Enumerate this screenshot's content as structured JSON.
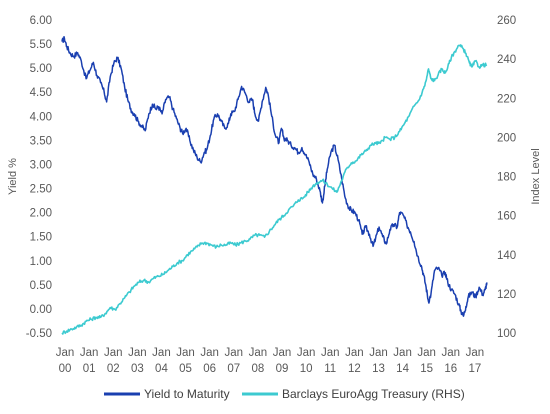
{
  "chart_data": {
    "type": "line",
    "ylabel": "Yield %",
    "y2label": "Index Level",
    "ylim": [
      -0.5,
      6.0
    ],
    "y2lim": [
      100,
      260
    ],
    "xlim": [
      2000.0,
      2017.75
    ],
    "grid": false,
    "legend_placement": "bottom",
    "y_ticks": [
      "6.00",
      "5.50",
      "5.00",
      "4.50",
      "4.00",
      "3.50",
      "3.00",
      "2.50",
      "2.00",
      "1.50",
      "1.00",
      "0.50",
      "0.00",
      "-0.50"
    ],
    "y2_ticks": [
      "260",
      "240",
      "220",
      "200",
      "180",
      "160",
      "140",
      "120",
      "100"
    ],
    "x_ticks": [
      {
        "x": 2000,
        "month": "Jan",
        "year": "00"
      },
      {
        "x": 2001,
        "month": "Jan",
        "year": "01"
      },
      {
        "x": 2002,
        "month": "Jan",
        "year": "02"
      },
      {
        "x": 2003,
        "month": "Jan",
        "year": "03"
      },
      {
        "x": 2004,
        "month": "Jan",
        "year": "04"
      },
      {
        "x": 2005,
        "month": "Jan",
        "year": "05"
      },
      {
        "x": 2006,
        "month": "Jan",
        "year": "06"
      },
      {
        "x": 2007,
        "month": "Jan",
        "year": "07"
      },
      {
        "x": 2008,
        "month": "Jan",
        "year": "08"
      },
      {
        "x": 2009,
        "month": "Jan",
        "year": "09"
      },
      {
        "x": 2010,
        "month": "Jan",
        "year": "10"
      },
      {
        "x": 2011,
        "month": "Jan",
        "year": "11"
      },
      {
        "x": 2012,
        "month": "Jan",
        "year": "12"
      },
      {
        "x": 2013,
        "month": "Jan",
        "year": "13"
      },
      {
        "x": 2014,
        "month": "Jan",
        "year": "14"
      },
      {
        "x": 2015,
        "month": "Jan",
        "year": "15"
      },
      {
        "x": 2016,
        "month": "Jan",
        "year": "16"
      },
      {
        "x": 2017,
        "month": "Jan",
        "year": "17"
      }
    ],
    "series": [
      {
        "name": "Yield to Maturity",
        "axis": "left",
        "color": "#1a3fb0",
        "points": [
          [
            2000.0,
            5.55
          ],
          [
            2000.1,
            5.62
          ],
          [
            2000.2,
            5.45
          ],
          [
            2000.35,
            5.3
          ],
          [
            2000.5,
            5.25
          ],
          [
            2000.65,
            5.32
          ],
          [
            2000.8,
            5.15
          ],
          [
            2001.0,
            4.78
          ],
          [
            2001.15,
            4.95
          ],
          [
            2001.3,
            5.12
          ],
          [
            2001.45,
            4.85
          ],
          [
            2001.6,
            4.7
          ],
          [
            2001.75,
            4.5
          ],
          [
            2001.85,
            4.3
          ],
          [
            2002.0,
            4.82
          ],
          [
            2002.15,
            5.1
          ],
          [
            2002.3,
            5.22
          ],
          [
            2002.45,
            5.0
          ],
          [
            2002.6,
            4.6
          ],
          [
            2002.75,
            4.3
          ],
          [
            2002.9,
            4.1
          ],
          [
            2003.0,
            4.05
          ],
          [
            2003.15,
            3.9
          ],
          [
            2003.3,
            3.8
          ],
          [
            2003.45,
            3.7
          ],
          [
            2003.6,
            4.05
          ],
          [
            2003.75,
            4.25
          ],
          [
            2003.9,
            4.15
          ],
          [
            2004.0,
            4.2
          ],
          [
            2004.15,
            4.05
          ],
          [
            2004.3,
            4.35
          ],
          [
            2004.45,
            4.4
          ],
          [
            2004.6,
            4.15
          ],
          [
            2004.75,
            3.95
          ],
          [
            2004.9,
            3.75
          ],
          [
            2005.0,
            3.65
          ],
          [
            2005.15,
            3.75
          ],
          [
            2005.3,
            3.5
          ],
          [
            2005.45,
            3.3
          ],
          [
            2005.6,
            3.15
          ],
          [
            2005.75,
            3.05
          ],
          [
            2005.9,
            3.25
          ],
          [
            2006.0,
            3.3
          ],
          [
            2006.15,
            3.6
          ],
          [
            2006.3,
            3.95
          ],
          [
            2006.45,
            4.05
          ],
          [
            2006.6,
            3.9
          ],
          [
            2006.75,
            3.75
          ],
          [
            2006.9,
            3.85
          ],
          [
            2007.0,
            4.05
          ],
          [
            2007.15,
            4.1
          ],
          [
            2007.3,
            4.35
          ],
          [
            2007.45,
            4.62
          ],
          [
            2007.6,
            4.48
          ],
          [
            2007.75,
            4.3
          ],
          [
            2007.9,
            4.35
          ],
          [
            2008.0,
            4.05
          ],
          [
            2008.15,
            3.9
          ],
          [
            2008.3,
            4.3
          ],
          [
            2008.45,
            4.6
          ],
          [
            2008.55,
            4.45
          ],
          [
            2008.7,
            4.0
          ],
          [
            2008.85,
            3.6
          ],
          [
            2009.0,
            3.45
          ],
          [
            2009.1,
            3.75
          ],
          [
            2009.2,
            3.55
          ],
          [
            2009.35,
            3.5
          ],
          [
            2009.5,
            3.4
          ],
          [
            2009.65,
            3.35
          ],
          [
            2009.8,
            3.25
          ],
          [
            2009.95,
            3.35
          ],
          [
            2010.1,
            3.2
          ],
          [
            2010.25,
            3.05
          ],
          [
            2010.4,
            2.8
          ],
          [
            2010.55,
            2.7
          ],
          [
            2010.7,
            2.45
          ],
          [
            2010.8,
            2.2
          ],
          [
            2010.9,
            2.55
          ],
          [
            2011.0,
            2.9
          ],
          [
            2011.15,
            3.25
          ],
          [
            2011.3,
            3.4
          ],
          [
            2011.45,
            3.1
          ],
          [
            2011.6,
            2.7
          ],
          [
            2011.75,
            2.3
          ],
          [
            2011.9,
            2.1
          ],
          [
            2012.0,
            2.05
          ],
          [
            2012.15,
            2.0
          ],
          [
            2012.3,
            1.85
          ],
          [
            2012.45,
            1.55
          ],
          [
            2012.6,
            1.7
          ],
          [
            2012.75,
            1.55
          ],
          [
            2012.9,
            1.3
          ],
          [
            2013.0,
            1.45
          ],
          [
            2013.15,
            1.7
          ],
          [
            2013.3,
            1.5
          ],
          [
            2013.45,
            1.35
          ],
          [
            2013.6,
            1.65
          ],
          [
            2013.75,
            1.75
          ],
          [
            2013.9,
            1.7
          ],
          [
            2014.0,
            2.0
          ],
          [
            2014.15,
            1.95
          ],
          [
            2014.3,
            1.75
          ],
          [
            2014.45,
            1.6
          ],
          [
            2014.6,
            1.4
          ],
          [
            2014.75,
            1.1
          ],
          [
            2014.9,
            0.9
          ],
          [
            2015.0,
            0.7
          ],
          [
            2015.1,
            0.45
          ],
          [
            2015.2,
            0.15
          ],
          [
            2015.3,
            0.3
          ],
          [
            2015.45,
            0.8
          ],
          [
            2015.6,
            0.85
          ],
          [
            2015.75,
            0.7
          ],
          [
            2015.9,
            0.75
          ],
          [
            2016.0,
            0.55
          ],
          [
            2016.15,
            0.4
          ],
          [
            2016.3,
            0.3
          ],
          [
            2016.45,
            0.1
          ],
          [
            2016.55,
            -0.05
          ],
          [
            2016.65,
            -0.15
          ],
          [
            2016.75,
            0.05
          ],
          [
            2016.85,
            0.25
          ],
          [
            2017.0,
            0.35
          ],
          [
            2017.15,
            0.25
          ],
          [
            2017.3,
            0.45
          ],
          [
            2017.45,
            0.3
          ],
          [
            2017.55,
            0.4
          ],
          [
            2017.62,
            0.55
          ]
        ]
      },
      {
        "name": "Barclays EuroAgg Treasury (RHS)",
        "axis": "right",
        "color": "#3ccad0",
        "points": [
          [
            2000.0,
            100
          ],
          [
            2000.2,
            101
          ],
          [
            2000.4,
            102
          ],
          [
            2000.6,
            103
          ],
          [
            2000.8,
            104
          ],
          [
            2001.0,
            106
          ],
          [
            2001.2,
            107
          ],
          [
            2001.4,
            108
          ],
          [
            2001.6,
            108
          ],
          [
            2001.8,
            110
          ],
          [
            2002.0,
            113
          ],
          [
            2002.2,
            112
          ],
          [
            2002.4,
            115
          ],
          [
            2002.6,
            118
          ],
          [
            2002.8,
            121
          ],
          [
            2003.0,
            124
          ],
          [
            2003.2,
            126
          ],
          [
            2003.4,
            127
          ],
          [
            2003.6,
            126
          ],
          [
            2003.8,
            128
          ],
          [
            2004.0,
            129
          ],
          [
            2004.2,
            130
          ],
          [
            2004.4,
            132
          ],
          [
            2004.6,
            134
          ],
          [
            2004.8,
            136
          ],
          [
            2005.0,
            137
          ],
          [
            2005.2,
            140
          ],
          [
            2005.4,
            142
          ],
          [
            2005.6,
            144
          ],
          [
            2005.8,
            146
          ],
          [
            2006.0,
            146
          ],
          [
            2006.2,
            145
          ],
          [
            2006.4,
            144
          ],
          [
            2006.6,
            145
          ],
          [
            2006.8,
            145
          ],
          [
            2007.0,
            146
          ],
          [
            2007.2,
            145
          ],
          [
            2007.4,
            146
          ],
          [
            2007.6,
            147
          ],
          [
            2007.8,
            148
          ],
          [
            2008.0,
            150
          ],
          [
            2008.2,
            150
          ],
          [
            2008.4,
            149
          ],
          [
            2008.6,
            152
          ],
          [
            2008.8,
            155
          ],
          [
            2009.0,
            158
          ],
          [
            2009.2,
            160
          ],
          [
            2009.4,
            163
          ],
          [
            2009.6,
            165
          ],
          [
            2009.8,
            168
          ],
          [
            2010.0,
            169
          ],
          [
            2010.2,
            172
          ],
          [
            2010.4,
            175
          ],
          [
            2010.6,
            177
          ],
          [
            2010.8,
            178
          ],
          [
            2011.0,
            176
          ],
          [
            2011.2,
            174
          ],
          [
            2011.4,
            172
          ],
          [
            2011.6,
            178
          ],
          [
            2011.8,
            184
          ],
          [
            2012.0,
            187
          ],
          [
            2012.2,
            188
          ],
          [
            2012.4,
            191
          ],
          [
            2012.6,
            193
          ],
          [
            2012.8,
            196
          ],
          [
            2013.0,
            197
          ],
          [
            2013.2,
            197
          ],
          [
            2013.4,
            200
          ],
          [
            2013.6,
            199
          ],
          [
            2013.8,
            200
          ],
          [
            2014.0,
            203
          ],
          [
            2014.2,
            207
          ],
          [
            2014.4,
            211
          ],
          [
            2014.6,
            216
          ],
          [
            2014.8,
            219
          ],
          [
            2015.0,
            225
          ],
          [
            2015.1,
            229
          ],
          [
            2015.2,
            235
          ],
          [
            2015.3,
            230
          ],
          [
            2015.45,
            229
          ],
          [
            2015.6,
            232
          ],
          [
            2015.75,
            235
          ],
          [
            2015.9,
            233
          ],
          [
            2016.0,
            236
          ],
          [
            2016.15,
            241
          ],
          [
            2016.3,
            244
          ],
          [
            2016.45,
            247
          ],
          [
            2016.6,
            246
          ],
          [
            2016.75,
            243
          ],
          [
            2016.9,
            238
          ],
          [
            2017.0,
            236
          ],
          [
            2017.15,
            239
          ],
          [
            2017.3,
            236
          ],
          [
            2017.45,
            237
          ],
          [
            2017.62,
            237
          ]
        ]
      }
    ]
  }
}
